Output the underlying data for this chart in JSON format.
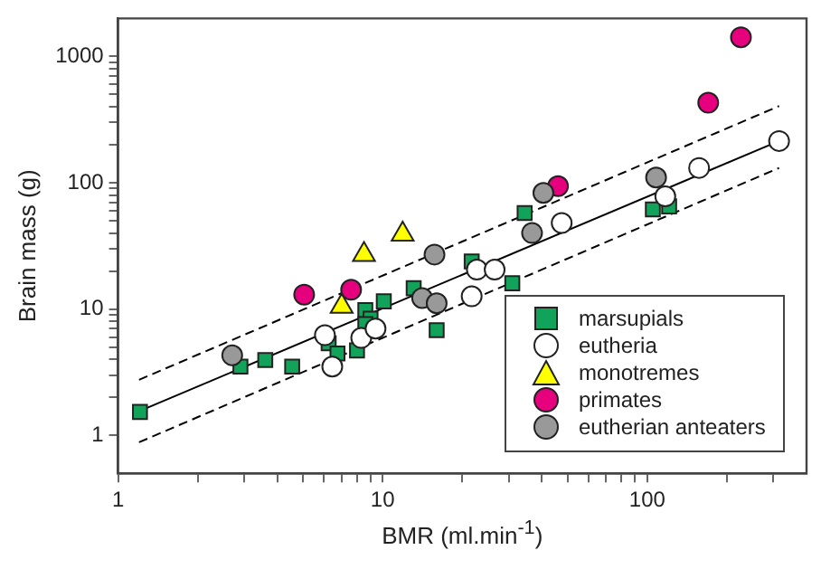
{
  "chart_data": {
    "type": "scatter",
    "xlabel": "BMR (ml.min$^{-1}$)",
    "ylabel": "Brain mass (g)",
    "log": "xy",
    "grid": false,
    "legend": "bottom right",
    "xlim": [
      1,
      400
    ],
    "ylim": [
      0.5,
      2000
    ],
    "xticks": [
      1,
      {
        "value": 2,
        "label": null
      },
      {
        "value": 3,
        "label": null
      },
      {
        "value": 4,
        "label": null
      },
      {
        "value": 5,
        "label": null
      },
      {
        "value": 6,
        "label": null
      },
      {
        "value": 7,
        "label": null
      },
      {
        "value": 8,
        "label": null
      },
      {
        "value": 9,
        "label": null
      },
      10,
      {
        "value": 20,
        "label": null
      },
      {
        "value": 30,
        "label": null
      },
      {
        "value": 40,
        "label": null
      },
      {
        "value": 50,
        "label": null
      },
      {
        "value": 60,
        "label": null
      },
      {
        "value": 70,
        "label": null
      },
      {
        "value": 80,
        "label": null
      },
      {
        "value": 90,
        "label": null
      },
      100,
      {
        "value": 200,
        "label": null
      },
      {
        "value": 300,
        "label": null
      }
    ],
    "yticks": [
      1,
      {
        "value": 2,
        "label": null
      },
      {
        "value": 3,
        "label": null
      },
      {
        "value": 4,
        "label": null
      },
      {
        "value": 5,
        "label": null
      },
      {
        "value": 6,
        "label": null
      },
      {
        "value": 7,
        "label": null
      },
      {
        "value": 8,
        "label": null
      },
      {
        "value": 9,
        "label": null
      },
      10,
      {
        "value": 20,
        "label": null
      },
      {
        "value": 30,
        "label": null
      },
      {
        "value": 40,
        "label": null
      },
      {
        "value": 50,
        "label": null
      },
      {
        "value": 60,
        "label": null
      },
      {
        "value": 70,
        "label": null
      },
      {
        "value": 80,
        "label": null
      },
      {
        "value": 90,
        "label": null
      },
      100,
      {
        "value": 200,
        "label": null
      },
      {
        "value": 300,
        "label": null
      },
      {
        "value": 400,
        "label": null
      },
      {
        "value": 500,
        "label": null
      },
      {
        "value": 600,
        "label": null
      },
      {
        "value": 700,
        "label": null
      },
      {
        "value": 800,
        "label": null
      },
      {
        "value": 900,
        "label": null
      },
      1000
    ],
    "series": [
      {
        "type": "line",
        "color": "#000000",
        "marker": "none",
        "line_style": "solid",
        "x": [
          1.2,
          315
        ],
        "values": [
          1.55,
          214
        ]
      },
      {
        "type": "line",
        "color": "#000000",
        "marker": "none",
        "line_style": "dashed",
        "x": [
          1.2,
          315
        ],
        "values": [
          2.75,
          405
        ]
      },
      {
        "type": "line",
        "color": "#000000",
        "marker": "none",
        "line_style": "dashed",
        "x": [
          1.2,
          315
        ],
        "values": [
          0.88,
          131
        ]
      },
      {
        "name": "marsupials",
        "marker": "square",
        "color": "#12a35a",
        "x": [
          1.21,
          2.9,
          3.6,
          4.55,
          6.25,
          6.75,
          8.0,
          8.6,
          9.0,
          8.6,
          10.1,
          13.1,
          16,
          21.7,
          30.9,
          34.4,
          105,
          121
        ],
        "values": [
          1.53,
          3.5,
          3.95,
          3.5,
          5.35,
          4.45,
          4.7,
          9.8,
          8.4,
          7.6,
          11.5,
          14.6,
          6.8,
          23.8,
          16,
          57.6,
          61.5,
          65
        ]
      },
      {
        "name": "eutheria",
        "marker": "circle",
        "color": "#ffffff",
        "x": [
          6.05,
          6.45,
          8.3,
          9.4,
          22.7,
          26.5,
          21.7,
          47.5,
          117,
          157,
          315
        ],
        "values": [
          6.2,
          3.5,
          5.9,
          7.0,
          20.5,
          20.5,
          12.6,
          48,
          78,
          131,
          214
        ]
      },
      {
        "name": "monotremes",
        "marker": "triangle",
        "color": "#ffff00",
        "x": [
          7.0,
          8.5,
          11.9
        ],
        "values": [
          10.5,
          27,
          39
        ]
      },
      {
        "name": "primates",
        "marker": "circle",
        "color": "#e6007e",
        "x": [
          5.05,
          7.6,
          46,
          170,
          226
        ],
        "values": [
          13,
          14.2,
          94,
          430,
          1420
        ]
      },
      {
        "name": "eutherian anteaters",
        "marker": "circle",
        "color": "#999999",
        "x": [
          2.7,
          15.7,
          14.1,
          16,
          36.7,
          40.5,
          108
        ],
        "values": [
          4.3,
          27,
          12.2,
          11.1,
          40,
          83,
          110
        ]
      }
    ]
  }
}
